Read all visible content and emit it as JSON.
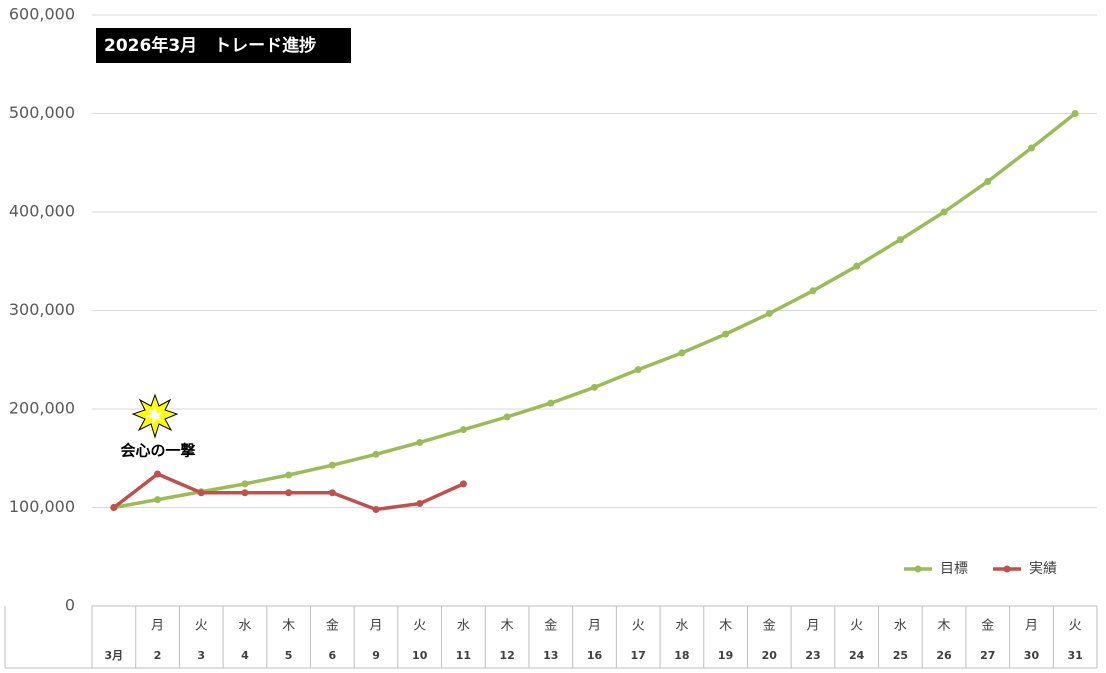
{
  "chart_data": {
    "type": "line",
    "title": "2026年3月　トレード進捗",
    "annotation": "会心の一撃",
    "categories": [
      "3月",
      "2",
      "3",
      "4",
      "5",
      "6",
      "9",
      "10",
      "11",
      "12",
      "13",
      "16",
      "17",
      "18",
      "19",
      "20",
      "23",
      "24",
      "25",
      "26",
      "27",
      "30",
      "31"
    ],
    "weekdays": [
      null,
      "月",
      "火",
      "水",
      "木",
      "金",
      "月",
      "火",
      "水",
      "木",
      "金",
      "月",
      "火",
      "水",
      "木",
      "金",
      "月",
      "火",
      "水",
      "木",
      "金",
      "月",
      "火"
    ],
    "series": [
      {
        "name": "目標",
        "color": "#9bbb59",
        "values": [
          100000,
          108000,
          116000,
          124000,
          133000,
          143000,
          154000,
          166000,
          179000,
          192000,
          206000,
          222000,
          240000,
          257000,
          276000,
          297000,
          320000,
          345000,
          372000,
          400000,
          431000,
          465000,
          500000
        ]
      },
      {
        "name": "実績",
        "color": "#c0504d",
        "values": [
          100000,
          134000,
          115000,
          115000,
          115000,
          115000,
          98000,
          104000,
          124000,
          null,
          null,
          null,
          null,
          null,
          null,
          null,
          null,
          null,
          null,
          null,
          null,
          null,
          null
        ]
      }
    ],
    "ylim": [
      0,
      600000
    ],
    "yticks": [
      0,
      {
        "value": 100000,
        "label": "100,000"
      },
      {
        "value": 200000,
        "label": "200,000"
      },
      {
        "value": 300000,
        "label": "300,000"
      },
      {
        "value": 400000,
        "label": "400,000"
      },
      {
        "value": 500000,
        "label": "500,000"
      },
      {
        "value": 600000,
        "label": "600,000"
      }
    ],
    "grid": true,
    "legend": "bottom-right"
  }
}
